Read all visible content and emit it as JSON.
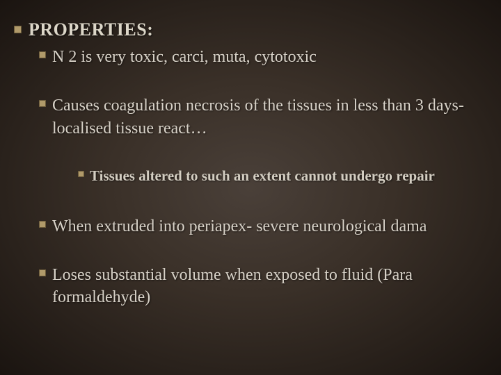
{
  "heading": "PROPERTIES:",
  "items": [
    "N 2 is very toxic, carci, muta, cytotoxic",
    "Causes coagulation necrosis of the tissues in less than 3 days-localised tissue react…",
    "When extruded into periapex- severe neurological dama",
    "Loses substantial volume when exposed to fluid (Para formaldehyde)"
  ],
  "subitem": "Tissues altered to such an extent cannot undergo repair"
}
